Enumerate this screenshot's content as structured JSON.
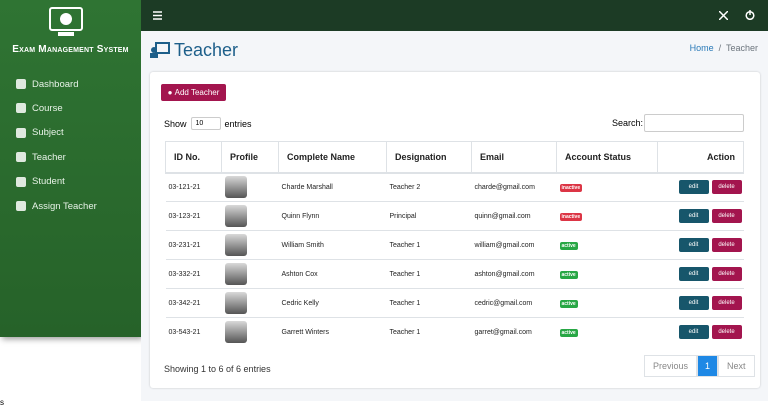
{
  "sidebar": {
    "brand": "Exam Management System",
    "menu": [
      "Dashboard",
      "Course",
      "Subject",
      "Teacher",
      "Student",
      "Assign Teacher"
    ]
  },
  "page": {
    "title": "Teacher",
    "breadcrumb": [
      "Home",
      "Teacher"
    ]
  },
  "toolbar": {
    "add_button": "Add Teacher",
    "show_label": "Show",
    "page_size": "10",
    "entries_label": "entries",
    "search_label": "Search:"
  },
  "table": {
    "columns": [
      "ID No.",
      "Profile",
      "Complete Name",
      "Designation",
      "Email",
      "Account Status",
      "Action"
    ],
    "rows": [
      {
        "id": "03-121-21",
        "name": "Charde Marshall",
        "designation": "Teacher 2",
        "email": "charde@gmail.com",
        "status": "inactive"
      },
      {
        "id": "03-123-21",
        "name": "Quinn Flynn",
        "designation": "Principal",
        "email": "quinn@gmail.com",
        "status": "inactive"
      },
      {
        "id": "03-231-21",
        "name": "William Smith",
        "designation": "Teacher 1",
        "email": "william@gmail.com",
        "status": "active"
      },
      {
        "id": "03-332-21",
        "name": "Ashton Cox",
        "designation": "Teacher 1",
        "email": "ashton@gmail.com",
        "status": "active"
      },
      {
        "id": "03-342-21",
        "name": "Cedric Kelly",
        "designation": "Teacher 1",
        "email": "cedric@gmail.com",
        "status": "active"
      },
      {
        "id": "03-543-21",
        "name": "Garrett Winters",
        "designation": "Teacher 1",
        "email": "garret@gmail.com",
        "status": "active"
      }
    ],
    "actions": [
      "edit",
      "delete"
    ]
  },
  "footer": {
    "info": "Showing 1 to 6 of 6 entries",
    "pagination": [
      "Previous",
      "1",
      "Next"
    ]
  },
  "stray_text": "s"
}
